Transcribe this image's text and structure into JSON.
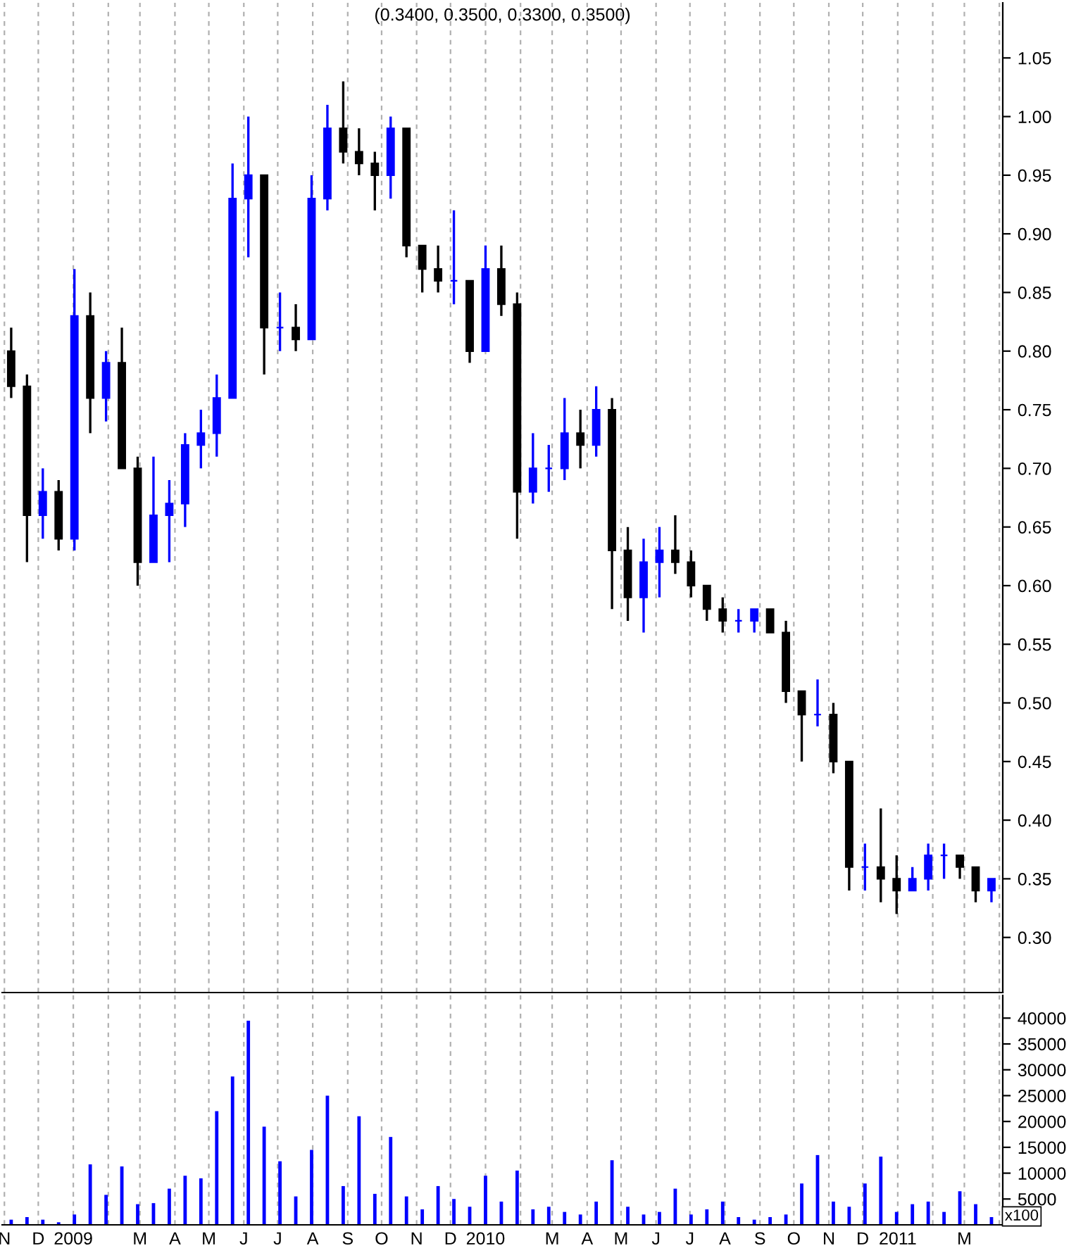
{
  "chart_data": [
    {
      "type": "candlestick",
      "title": "(0.3400, 0.3500, 0.3300, 0.3500)",
      "x": [
        "2008-11-07",
        "2008-11-21",
        "2008-12-05",
        "2008-12-19",
        "2009-01-02",
        "2009-01-16",
        "2009-01-30",
        "2009-02-13",
        "2009-02-27",
        "2009-03-13",
        "2009-03-27",
        "2009-04-10",
        "2009-04-24",
        "2009-05-08",
        "2009-05-22",
        "2009-06-05",
        "2009-06-19",
        "2009-07-03",
        "2009-07-17",
        "2009-07-31",
        "2009-08-14",
        "2009-08-28",
        "2009-09-11",
        "2009-09-25",
        "2009-10-09",
        "2009-10-23",
        "2009-11-06",
        "2009-11-20",
        "2009-12-04",
        "2009-12-18",
        "2010-01-01",
        "2010-01-15",
        "2010-01-29",
        "2010-02-12",
        "2010-02-26",
        "2010-03-12",
        "2010-03-26",
        "2010-04-09",
        "2010-04-23",
        "2010-05-07",
        "2010-05-21",
        "2010-06-04",
        "2010-06-18",
        "2010-07-02",
        "2010-07-16",
        "2010-07-30",
        "2010-08-13",
        "2010-08-27",
        "2010-09-10",
        "2010-09-24",
        "2010-10-08",
        "2010-10-22",
        "2010-11-05",
        "2010-11-19",
        "2010-12-03",
        "2010-12-17",
        "2010-12-31",
        "2011-01-14",
        "2011-01-28",
        "2011-02-11",
        "2011-02-25",
        "2011-03-11",
        "2011-03-25"
      ],
      "ohlc": [
        [
          0.8,
          0.82,
          0.76,
          0.77
        ],
        [
          0.77,
          0.78,
          0.62,
          0.66
        ],
        [
          0.66,
          0.7,
          0.64,
          0.68
        ],
        [
          0.68,
          0.69,
          0.63,
          0.64
        ],
        [
          0.64,
          0.87,
          0.63,
          0.83
        ],
        [
          0.83,
          0.85,
          0.73,
          0.76
        ],
        [
          0.76,
          0.8,
          0.74,
          0.79
        ],
        [
          0.79,
          0.82,
          0.7,
          0.7
        ],
        [
          0.7,
          0.71,
          0.6,
          0.62
        ],
        [
          0.62,
          0.71,
          0.62,
          0.66
        ],
        [
          0.66,
          0.69,
          0.62,
          0.67
        ],
        [
          0.67,
          0.73,
          0.65,
          0.72
        ],
        [
          0.72,
          0.75,
          0.7,
          0.73
        ],
        [
          0.73,
          0.78,
          0.71,
          0.76
        ],
        [
          0.76,
          0.96,
          0.76,
          0.93
        ],
        [
          0.93,
          1.0,
          0.88,
          0.95
        ],
        [
          0.95,
          0.95,
          0.78,
          0.82
        ],
        [
          0.82,
          0.85,
          0.8,
          0.82
        ],
        [
          0.82,
          0.84,
          0.8,
          0.81
        ],
        [
          0.81,
          0.95,
          0.81,
          0.93
        ],
        [
          0.93,
          1.01,
          0.92,
          0.99
        ],
        [
          0.99,
          1.03,
          0.96,
          0.97
        ],
        [
          0.97,
          0.99,
          0.95,
          0.96
        ],
        [
          0.96,
          0.97,
          0.92,
          0.95
        ],
        [
          0.95,
          1.0,
          0.93,
          0.99
        ],
        [
          0.99,
          0.99,
          0.88,
          0.89
        ],
        [
          0.89,
          0.89,
          0.85,
          0.87
        ],
        [
          0.87,
          0.89,
          0.85,
          0.86
        ],
        [
          0.86,
          0.92,
          0.84,
          0.86
        ],
        [
          0.86,
          0.86,
          0.79,
          0.8
        ],
        [
          0.8,
          0.89,
          0.8,
          0.87
        ],
        [
          0.87,
          0.89,
          0.83,
          0.84
        ],
        [
          0.84,
          0.85,
          0.64,
          0.68
        ],
        [
          0.68,
          0.73,
          0.67,
          0.7
        ],
        [
          0.7,
          0.72,
          0.68,
          0.7
        ],
        [
          0.7,
          0.76,
          0.69,
          0.73
        ],
        [
          0.73,
          0.75,
          0.7,
          0.72
        ],
        [
          0.72,
          0.77,
          0.71,
          0.75
        ],
        [
          0.75,
          0.76,
          0.58,
          0.63
        ],
        [
          0.63,
          0.65,
          0.57,
          0.59
        ],
        [
          0.59,
          0.64,
          0.56,
          0.62
        ],
        [
          0.62,
          0.65,
          0.59,
          0.63
        ],
        [
          0.63,
          0.66,
          0.61,
          0.62
        ],
        [
          0.62,
          0.63,
          0.59,
          0.6
        ],
        [
          0.6,
          0.6,
          0.57,
          0.58
        ],
        [
          0.58,
          0.59,
          0.56,
          0.57
        ],
        [
          0.57,
          0.58,
          0.56,
          0.57
        ],
        [
          0.57,
          0.58,
          0.56,
          0.58
        ],
        [
          0.58,
          0.58,
          0.56,
          0.56
        ],
        [
          0.56,
          0.57,
          0.5,
          0.51
        ],
        [
          0.51,
          0.51,
          0.45,
          0.49
        ],
        [
          0.49,
          0.52,
          0.48,
          0.49
        ],
        [
          0.49,
          0.5,
          0.44,
          0.45
        ],
        [
          0.45,
          0.45,
          0.34,
          0.36
        ],
        [
          0.36,
          0.38,
          0.34,
          0.36
        ],
        [
          0.36,
          0.41,
          0.33,
          0.35
        ],
        [
          0.35,
          0.37,
          0.32,
          0.34
        ],
        [
          0.34,
          0.36,
          0.34,
          0.35
        ],
        [
          0.35,
          0.38,
          0.34,
          0.37
        ],
        [
          0.37,
          0.38,
          0.35,
          0.37
        ],
        [
          0.37,
          0.37,
          0.35,
          0.36
        ],
        [
          0.36,
          0.36,
          0.33,
          0.34
        ],
        [
          0.34,
          0.35,
          0.33,
          0.35
        ]
      ],
      "colors": [
        "#000000",
        "#000000",
        "#0000ff",
        "#000000",
        "#0000ff",
        "#000000",
        "#0000ff",
        "#000000",
        "#000000",
        "#0000ff",
        "#0000ff",
        "#0000ff",
        "#0000ff",
        "#0000ff",
        "#0000ff",
        "#0000ff",
        "#000000",
        "#0000ff",
        "#000000",
        "#0000ff",
        "#0000ff",
        "#000000",
        "#000000",
        "#000000",
        "#0000ff",
        "#000000",
        "#000000",
        "#000000",
        "#0000ff",
        "#000000",
        "#0000ff",
        "#000000",
        "#000000",
        "#0000ff",
        "#0000ff",
        "#0000ff",
        "#000000",
        "#0000ff",
        "#000000",
        "#000000",
        "#0000ff",
        "#0000ff",
        "#000000",
        "#000000",
        "#000000",
        "#000000",
        "#0000ff",
        "#0000ff",
        "#000000",
        "#000000",
        "#000000",
        "#0000ff",
        "#000000",
        "#000000",
        "#0000ff",
        "#000000",
        "#000000",
        "#0000ff",
        "#0000ff",
        "#0000ff",
        "#000000",
        "#000000",
        "#0000ff"
      ],
      "xlim": [
        "2008-10-30",
        "2011-04-04"
      ],
      "xticks": [
        {
          "value": "2008-11-01",
          "label": null
        },
        {
          "value": "2008-12-01",
          "label": null
        },
        {
          "value": "2009-01-01",
          "label": null
        },
        {
          "value": "2009-02-01",
          "label": null
        },
        {
          "value": "2009-03-01",
          "label": null
        },
        {
          "value": "2009-04-01",
          "label": null
        },
        {
          "value": "2009-05-01",
          "label": null
        },
        {
          "value": "2009-06-01",
          "label": null
        },
        {
          "value": "2009-07-01",
          "label": null
        },
        {
          "value": "2009-08-01",
          "label": null
        },
        {
          "value": "2009-09-01",
          "label": null
        },
        {
          "value": "2009-10-01",
          "label": null
        },
        {
          "value": "2009-11-01",
          "label": null
        },
        {
          "value": "2009-12-01",
          "label": null
        },
        {
          "value": "2010-01-01",
          "label": null
        },
        {
          "value": "2010-02-01",
          "label": null
        },
        {
          "value": "2010-03-01",
          "label": null
        },
        {
          "value": "2010-04-01",
          "label": null
        },
        {
          "value": "2010-05-01",
          "label": null
        },
        {
          "value": "2010-06-01",
          "label": null
        },
        {
          "value": "2010-07-01",
          "label": null
        },
        {
          "value": "2010-08-01",
          "label": null
        },
        {
          "value": "2010-09-01",
          "label": null
        },
        {
          "value": "2010-10-01",
          "label": null
        },
        {
          "value": "2010-11-01",
          "label": null
        },
        {
          "value": "2010-12-01",
          "label": null
        },
        {
          "value": "2011-01-01",
          "label": null
        },
        {
          "value": "2011-02-01",
          "label": null
        },
        {
          "value": "2011-03-01",
          "label": null
        },
        {
          "value": "2011-04-01",
          "label": null
        }
      ],
      "ylim": [
        0.253,
        1.097
      ],
      "yticks": [
        {
          "value": 0.3,
          "label": "0.30"
        },
        {
          "value": 0.35,
          "label": "0.35"
        },
        {
          "value": 0.4,
          "label": "0.40"
        },
        {
          "value": 0.45,
          "label": "0.45"
        },
        {
          "value": 0.5,
          "label": "0.50"
        },
        {
          "value": 0.55,
          "label": "0.55"
        },
        {
          "value": 0.6,
          "label": "0.60"
        },
        {
          "value": 0.65,
          "label": "0.65"
        },
        {
          "value": 0.7,
          "label": "0.70"
        },
        {
          "value": 0.75,
          "label": "0.75"
        },
        {
          "value": 0.8,
          "label": "0.80"
        },
        {
          "value": 0.85,
          "label": "0.85"
        },
        {
          "value": 0.9,
          "label": "0.90"
        },
        {
          "value": 0.95,
          "label": "0.95"
        },
        {
          "value": 1.0,
          "label": "1.00"
        },
        {
          "value": 1.05,
          "label": "1.05"
        }
      ],
      "grid": "x",
      "tick_labels": "y"
    },
    {
      "type": "bar",
      "x": [
        "2008-11-07",
        "2008-11-21",
        "2008-12-05",
        "2008-12-19",
        "2009-01-02",
        "2009-01-16",
        "2009-01-30",
        "2009-02-13",
        "2009-02-27",
        "2009-03-13",
        "2009-03-27",
        "2009-04-10",
        "2009-04-24",
        "2009-05-08",
        "2009-05-22",
        "2009-06-05",
        "2009-06-19",
        "2009-07-03",
        "2009-07-17",
        "2009-07-31",
        "2009-08-14",
        "2009-08-28",
        "2009-09-11",
        "2009-09-25",
        "2009-10-09",
        "2009-10-23",
        "2009-11-06",
        "2009-11-20",
        "2009-12-04",
        "2009-12-18",
        "2010-01-01",
        "2010-01-15",
        "2010-01-29",
        "2010-02-12",
        "2010-02-26",
        "2010-03-12",
        "2010-03-26",
        "2010-04-09",
        "2010-04-23",
        "2010-05-07",
        "2010-05-21",
        "2010-06-04",
        "2010-06-18",
        "2010-07-02",
        "2010-07-16",
        "2010-07-30",
        "2010-08-13",
        "2010-08-27",
        "2010-09-10",
        "2010-09-24",
        "2010-10-08",
        "2010-10-22",
        "2010-11-05",
        "2010-11-19",
        "2010-12-03",
        "2010-12-17",
        "2010-12-31",
        "2011-01-14",
        "2011-01-28",
        "2011-02-11",
        "2011-02-25",
        "2011-03-11",
        "2011-03-25"
      ],
      "values": [
        1000,
        1500,
        1000,
        500,
        2000,
        11700,
        5800,
        11300,
        4000,
        4200,
        7000,
        9500,
        9000,
        22000,
        28700,
        39500,
        19000,
        12300,
        5500,
        14500,
        25000,
        7500,
        21000,
        6000,
        17000,
        5500,
        3000,
        7500,
        5000,
        3500,
        9500,
        4500,
        10500,
        3000,
        3500,
        2500,
        2000,
        4500,
        12500,
        3500,
        2000,
        2500,
        7000,
        2000,
        3000,
        4500,
        1500,
        1000,
        1500,
        2000,
        8000,
        13500,
        4500,
        3500,
        8000,
        13200,
        2500,
        4000,
        4500,
        2500,
        6500,
        4000,
        1500
      ],
      "color": "#0000ff",
      "xlim": [
        "2008-10-30",
        "2011-04-04"
      ],
      "xticks": [
        {
          "value": "2008-11-01",
          "label": "N"
        },
        {
          "value": "2008-12-01",
          "label": "D"
        },
        {
          "value": "2009-01-01",
          "label": "2009"
        },
        {
          "value": "2009-02-01",
          "label": null
        },
        {
          "value": "2009-03-01",
          "label": "M"
        },
        {
          "value": "2009-04-01",
          "label": "A"
        },
        {
          "value": "2009-05-01",
          "label": "M"
        },
        {
          "value": "2009-06-01",
          "label": "J"
        },
        {
          "value": "2009-07-01",
          "label": "J"
        },
        {
          "value": "2009-08-01",
          "label": "A"
        },
        {
          "value": "2009-09-01",
          "label": "S"
        },
        {
          "value": "2009-10-01",
          "label": "O"
        },
        {
          "value": "2009-11-01",
          "label": "N"
        },
        {
          "value": "2009-12-01",
          "label": "D"
        },
        {
          "value": "2010-01-01",
          "label": "2010"
        },
        {
          "value": "2010-02-01",
          "label": null
        },
        {
          "value": "2010-03-01",
          "label": "M"
        },
        {
          "value": "2010-04-01",
          "label": "A"
        },
        {
          "value": "2010-05-01",
          "label": "M"
        },
        {
          "value": "2010-06-01",
          "label": "J"
        },
        {
          "value": "2010-07-01",
          "label": "J"
        },
        {
          "value": "2010-08-01",
          "label": "A"
        },
        {
          "value": "2010-09-01",
          "label": "S"
        },
        {
          "value": "2010-10-01",
          "label": "O"
        },
        {
          "value": "2010-11-01",
          "label": "N"
        },
        {
          "value": "2010-12-01",
          "label": "D"
        },
        {
          "value": "2011-01-01",
          "label": "2011"
        },
        {
          "value": "2011-02-01",
          "label": null
        },
        {
          "value": "2011-03-01",
          "label": "M"
        },
        {
          "value": "2011-04-01",
          "label": null
        }
      ],
      "ylim": [
        0,
        44400
      ],
      "yticks": [
        5000,
        10000,
        15000,
        20000,
        25000,
        30000,
        35000,
        40000
      ],
      "grid": "x",
      "annotations": [
        "x100"
      ]
    }
  ]
}
